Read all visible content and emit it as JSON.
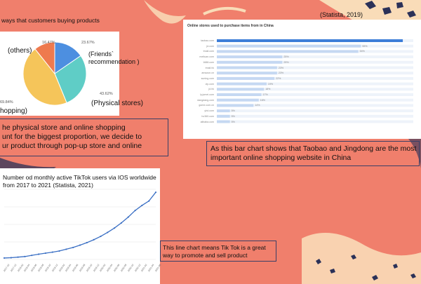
{
  "slide": {
    "colors": {
      "background": "#f07f6c",
      "cream": "#f9dcb8",
      "navy": "#2b3158",
      "pie_blue": "#4d8fe0",
      "pie_teal": "#5fcdc6",
      "pie_yellow": "#f5c55a",
      "pie_orange": "#ee7a4e",
      "bar_blue": "#3d7ed8",
      "bar_light": "#c5d8f2",
      "line_blue": "#3a6fc4"
    },
    "pie_title": "ways that customers buying products",
    "top_right_source": "(Statista, 2019)",
    "pie_caption": "he physical store and online shopping\nunt for the biggest proportion, we decide to\nur product through pop-up store and online",
    "bar_caption": "As this bar chart shows that Taobao and Jingdong are the most important online shopping website in China",
    "line_title": "Number od monthly active TikTok users via IOS worldwide from 2017 to 2021 (Statista, 2021)",
    "line_caption": "This line chart  means Tik Tok is a great way to promote and sell product"
  },
  "chart_data": [
    {
      "type": "pie",
      "title": "ways that customers buying products",
      "slices": [
        {
          "name": "(Friends` recommendation )",
          "value": 23.67,
          "label": "23.67%"
        },
        {
          "name": "(Physical stores)",
          "value": 43.62,
          "label": "43.62%"
        },
        {
          "name": "hopping)",
          "value": 69.84,
          "label": "69.84%"
        },
        {
          "name": "(others)",
          "value": 16.47,
          "label": "16.47%"
        }
      ]
    },
    {
      "type": "bar",
      "title": "Online stores used to purchase items from in China",
      "categories": [
        "taobao.com",
        "jd.com",
        "tmall.com",
        "meituan.com",
        "1688.com",
        "tmall.hk",
        "amazon.cn",
        "suning.com",
        "vip.com",
        "jd.hk",
        "ly.jumei.com",
        "dangdang.com",
        "gome.com.cn",
        "yhd.com",
        "hc360.com",
        "alibaba.com"
      ],
      "values": [
        71,
        55,
        54,
        25,
        25,
        23,
        23,
        22,
        19,
        18,
        17,
        16,
        14,
        5,
        5,
        5
      ],
      "value_labels": [
        "",
        "55%",
        "54%",
        "25%",
        "25%",
        "23%",
        "23%",
        "22%",
        "19%",
        "18%",
        "17%",
        "16%",
        "14%",
        "5%",
        "5%",
        "5%"
      ],
      "xlim": [
        0,
        75
      ]
    },
    {
      "type": "line",
      "title": "Number od monthly active TikTok users via IOS worldwide from 2017 to 2021 (Statista, 2021)",
      "x": [
        "2017-10",
        "2017-12",
        "2018-02",
        "2018-04",
        "2018-06",
        "2018-08",
        "2018-10",
        "2018-12",
        "2019-02",
        "2019-04",
        "2019-06",
        "2019-08",
        "2019-10",
        "2019-12",
        "2020-02",
        "2020-04",
        "2020-06",
        "2020-08",
        "2020-10",
        "2020-12",
        "2021-02",
        "2021-04",
        "2021-06"
      ],
      "values": [
        1.0,
        1.2,
        1.6,
        2.0,
        2.8,
        3.6,
        4.3,
        5.0,
        5.8,
        7.0,
        8.2,
        9.8,
        11.5,
        13.5,
        15.8,
        18.5,
        21.5,
        25.0,
        29.0,
        33.5,
        37.0,
        40.0,
        46.0
      ]
    }
  ]
}
